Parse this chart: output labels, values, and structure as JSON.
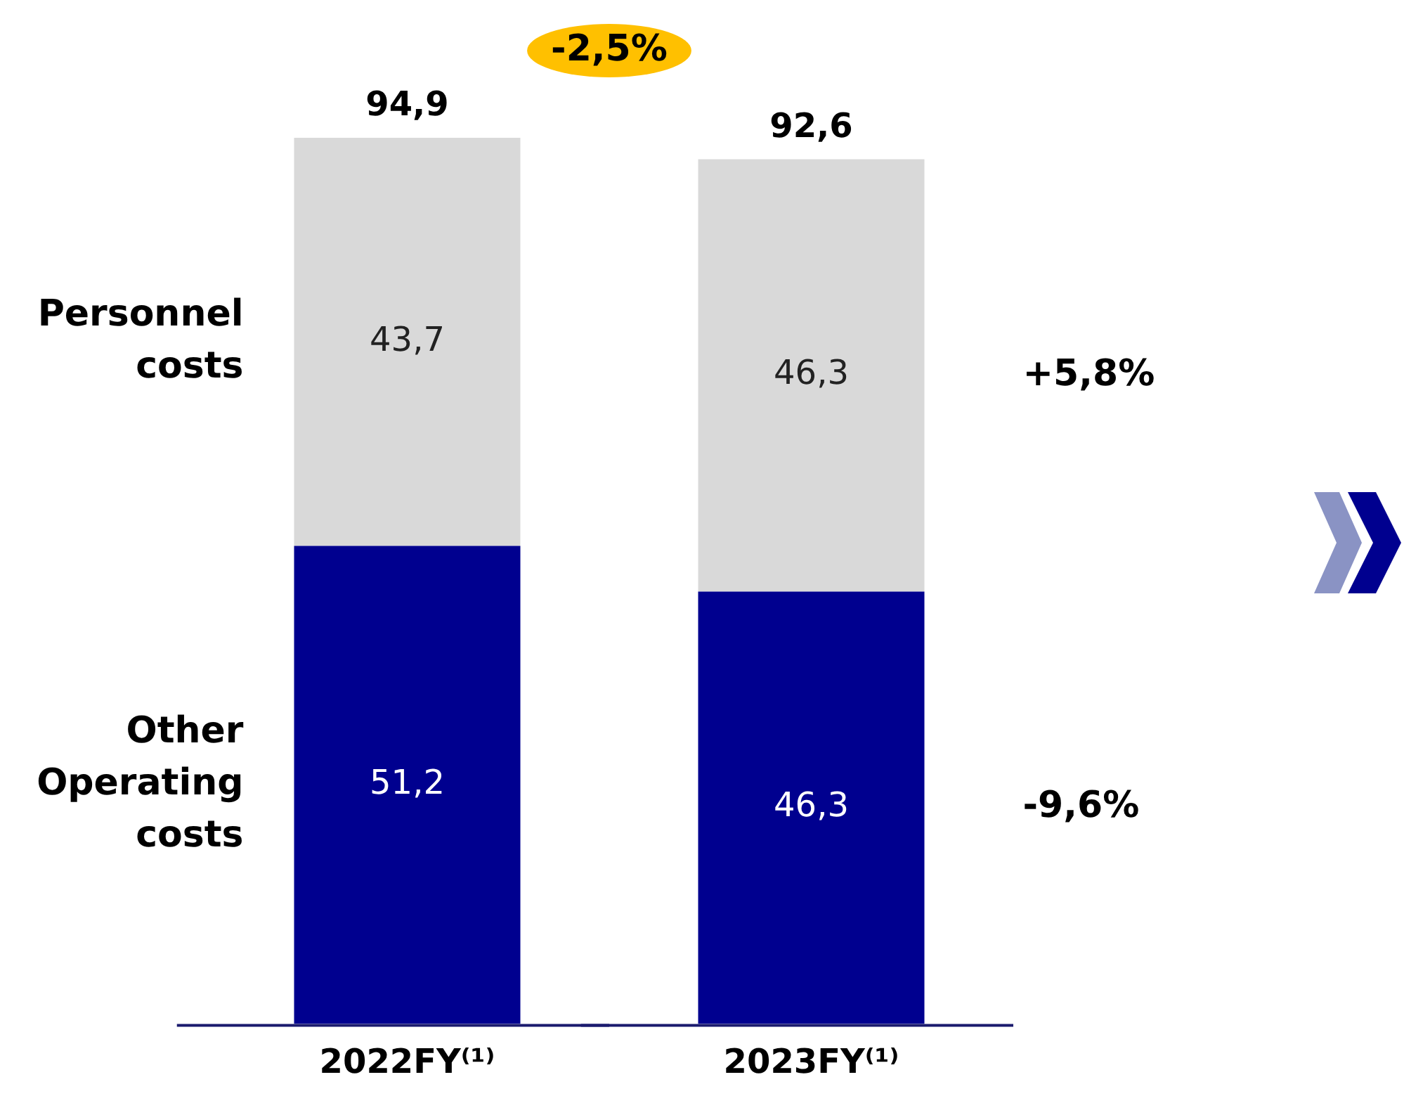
{
  "chart_data": {
    "type": "bar",
    "stacked": true,
    "categories": [
      "2022FY⁽¹⁾",
      "2023FY⁽¹⁾"
    ],
    "series": [
      {
        "name": "Other Operating costs",
        "color": "#00008f",
        "values": [
          51.2,
          46.3
        ],
        "value_labels": [
          "51,2",
          "46,3"
        ]
      },
      {
        "name": "Personnel costs",
        "color": "#d9d9d9",
        "values": [
          43.7,
          46.3
        ],
        "value_labels": [
          "43,7",
          "46,3"
        ]
      }
    ],
    "totals": [
      "94,9",
      "92,6"
    ],
    "annotations": [
      "-2,5%",
      "-9,6%",
      "+5,8%"
    ],
    "legend": false,
    "grid": false
  }
}
